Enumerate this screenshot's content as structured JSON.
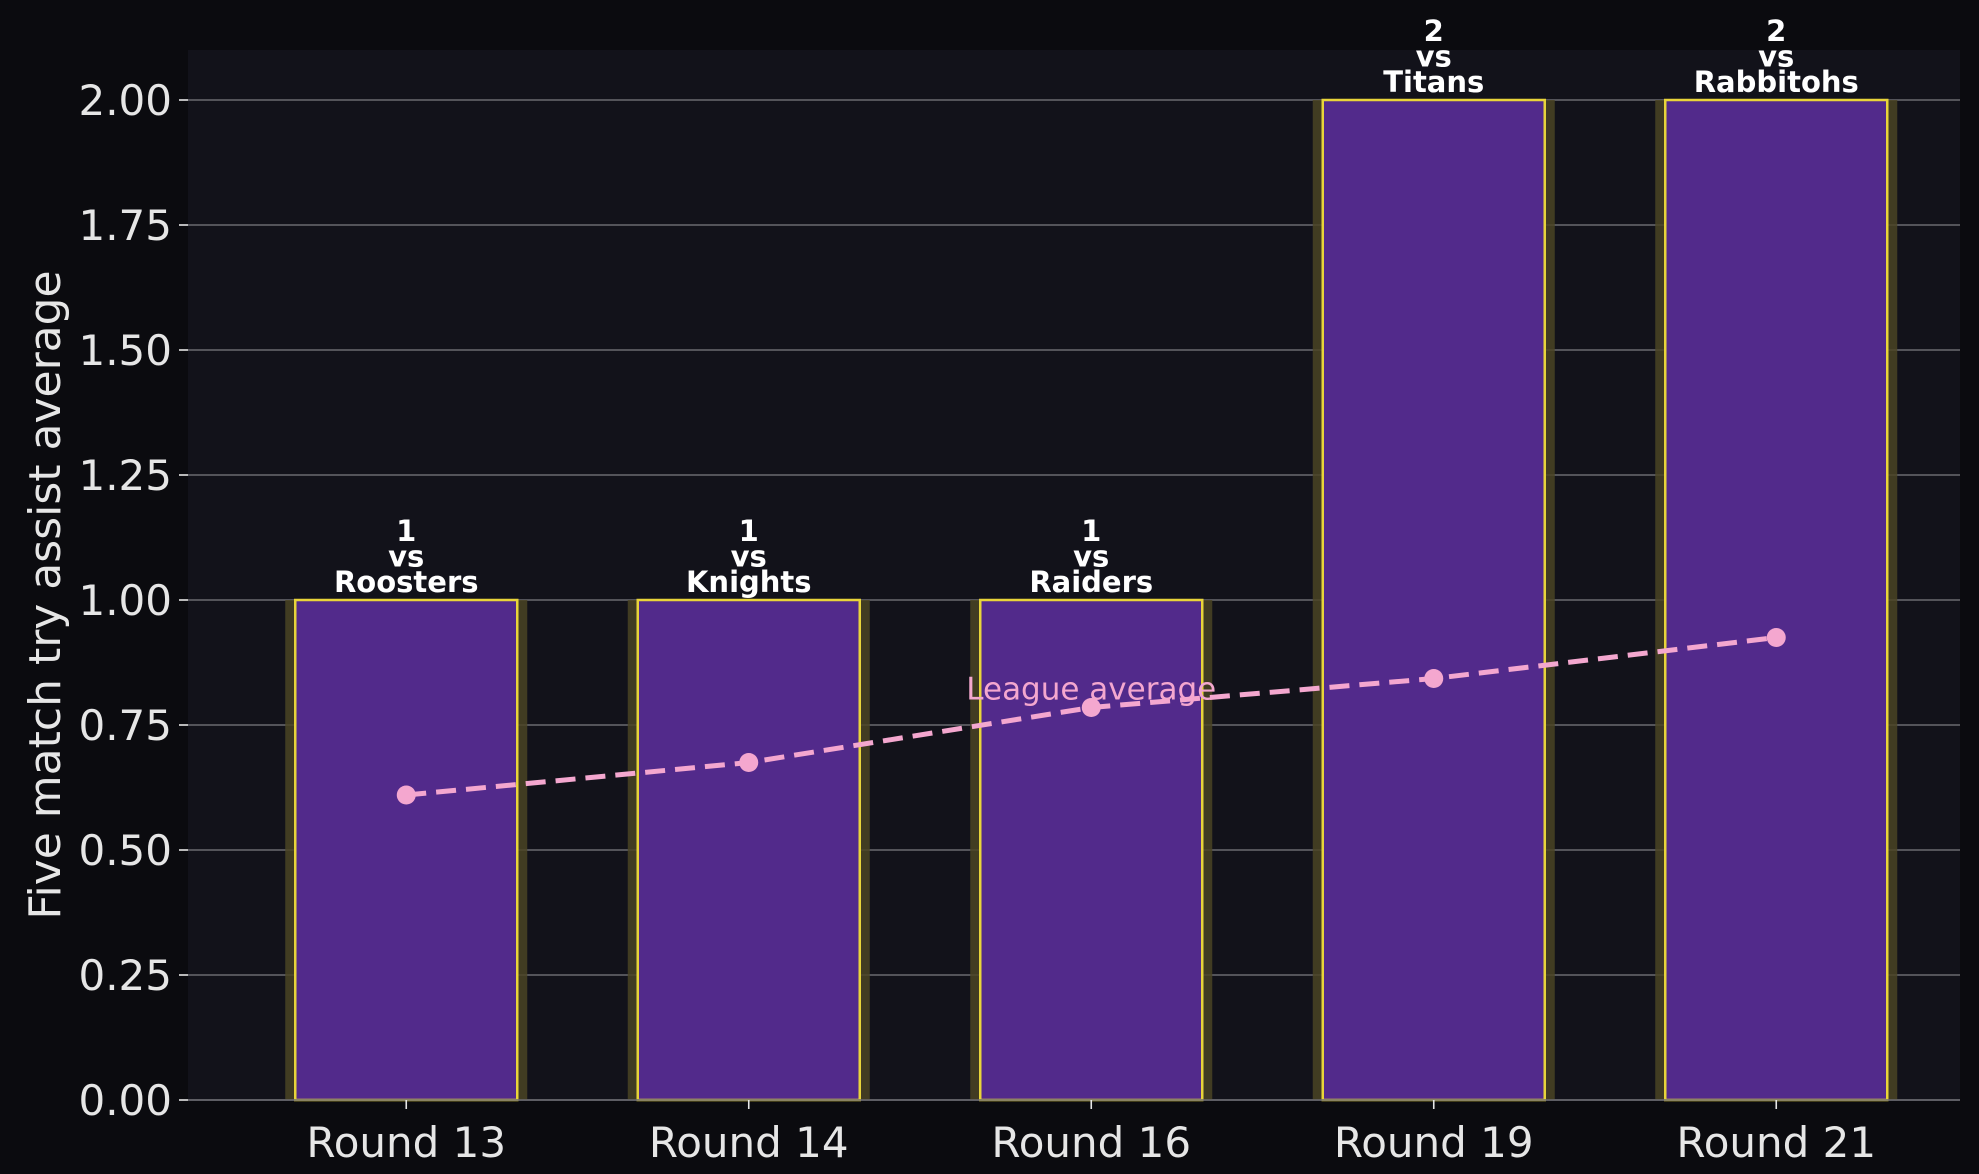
{
  "colors": {
    "page_bg": "#0b0b0f",
    "plot_bg": "#12121a",
    "bar_fill": "#522a8b",
    "bar_edge": "#e8d43a",
    "bar_glow": "#4a4424",
    "grid": "#6a6a70",
    "text": "#e6e6e6",
    "label": "#ffffff",
    "line": "#f4a7cf"
  },
  "chart_data": {
    "type": "bar",
    "ylabel": "Five match try assist average",
    "xlabel": "",
    "ylim": [
      0,
      2.1
    ],
    "yticks": [
      "0.00",
      "0.25",
      "0.50",
      "0.75",
      "1.00",
      "1.25",
      "1.50",
      "1.75",
      "2.00"
    ],
    "categories": [
      "Round 13",
      "Round 14",
      "Round 16",
      "Round 19",
      "Round 21"
    ],
    "values": [
      1,
      1,
      1,
      2,
      2
    ],
    "bar_labels": [
      [
        "1",
        "vs",
        "Roosters"
      ],
      [
        "1",
        "vs",
        "Knights"
      ],
      [
        "1",
        "vs",
        "Raiders"
      ],
      [
        "2",
        "vs",
        "Titans"
      ],
      [
        "2",
        "vs",
        "Rabbitohs"
      ]
    ],
    "line_series": {
      "name": "League average",
      "values": [
        0.61,
        0.675,
        0.785,
        0.843,
        0.925
      ]
    },
    "grid": true
  }
}
